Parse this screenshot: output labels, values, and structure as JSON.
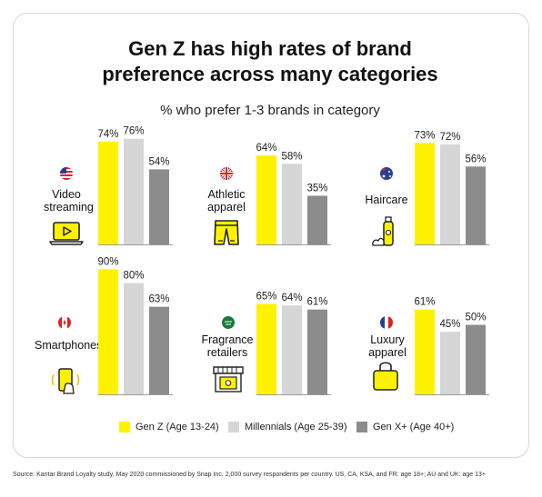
{
  "title_line1": "Gen Z has high rates of brand",
  "title_line2": "preference across many categories",
  "subtitle": "% who prefer 1-3 brands in category",
  "source": "Source: Kantar Brand Loyalty study, May 2020 commissioned by Snap Inc. 2,000 survey respondents per country. US, CA, KSA, and FR: age 18+; AU and UK: age 13+",
  "colors": {
    "genz": "#fff200",
    "millennials": "#d6d6d6",
    "genx": "#8c8c8c"
  },
  "chart_data": {
    "type": "bar",
    "title": "Gen Z has high rates of brand preference across many categories",
    "subtitle": "% who prefer 1-3 brands in category",
    "ylim": [
      0,
      90
    ],
    "legend_position": "bottom",
    "series": [
      {
        "name": "Gen Z (Age 13-24)",
        "color": "#fff200"
      },
      {
        "name": "Millennials (Age 25-39)",
        "color": "#d6d6d6"
      },
      {
        "name": "Gen X+ (Age 40+)",
        "color": "#8c8c8c"
      }
    ],
    "panels": [
      {
        "line1": "Video",
        "line2": "streaming",
        "flag": "us-flag-icon",
        "icon": "laptop-play-icon",
        "values": [
          74,
          76,
          54
        ],
        "labels": [
          "74%",
          "76%",
          "54%"
        ]
      },
      {
        "line1": "Athletic",
        "line2": "apparel",
        "flag": "uk-flag-icon",
        "icon": "shorts-icon",
        "values": [
          64,
          58,
          35
        ],
        "labels": [
          "64%",
          "58%",
          "35%"
        ]
      },
      {
        "line1": "Haircare",
        "line2": "",
        "flag": "au-flag-icon",
        "icon": "shampoo-bottle-icon",
        "values": [
          73,
          72,
          56
        ],
        "labels": [
          "73%",
          "72%",
          "56%"
        ]
      },
      {
        "line1": "Smartphones",
        "line2": "",
        "flag": "ca-flag-icon",
        "icon": "phone-in-hand-icon",
        "values": [
          90,
          80,
          63
        ],
        "labels": [
          "90%",
          "80%",
          "63%"
        ]
      },
      {
        "line1": "Fragrance",
        "line2": "retailers",
        "flag": "sa-flag-icon",
        "icon": "storefront-icon",
        "values": [
          65,
          64,
          61
        ],
        "labels": [
          "65%",
          "64%",
          "61%"
        ]
      },
      {
        "line1": "Luxury",
        "line2": "apparel",
        "flag": "fr-flag-icon",
        "icon": "handbag-icon",
        "values": [
          61,
          45,
          50
        ],
        "labels": [
          "61%",
          "45%",
          "50%"
        ]
      }
    ]
  }
}
